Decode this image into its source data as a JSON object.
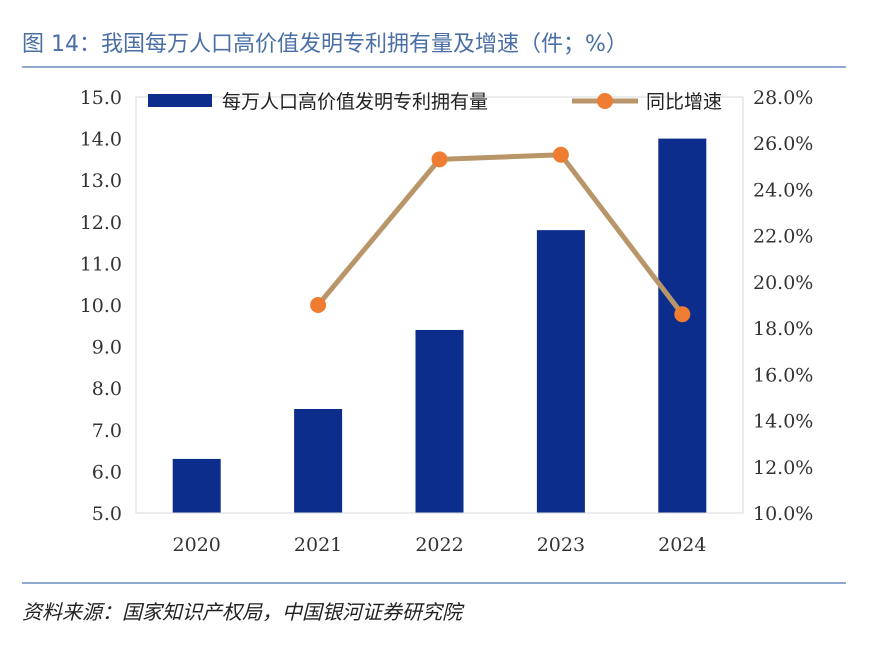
{
  "title": "图 14：我国每万人口高价值发明专利拥有量及增速（件；%）",
  "source": "资料来源：国家知识产权局，中国银河证券研究院",
  "colors": {
    "bar": "#0d2d8c",
    "line": "#b8966a",
    "marker": "#ee7d31",
    "accent": "#4a6fa5"
  },
  "chart_data": {
    "type": "bar",
    "categories": [
      "2020",
      "2021",
      "2022",
      "2023",
      "2024"
    ],
    "series": [
      {
        "name": "每万人口高价值发明专利拥有量",
        "type": "bar",
        "axis": "left",
        "values": [
          6.3,
          7.5,
          9.4,
          11.8,
          14.0
        ]
      },
      {
        "name": "同比增速",
        "type": "line",
        "axis": "right",
        "values": [
          null,
          19.0,
          25.3,
          25.5,
          18.6
        ]
      }
    ],
    "ylim": [
      5.0,
      15.0
    ],
    "y_ticks": [
      "15.0",
      "14.0",
      "13.0",
      "12.0",
      "11.0",
      "10.0",
      "9.0",
      "8.0",
      "7.0",
      "6.0",
      "5.0"
    ],
    "y2lim": [
      10.0,
      28.0
    ],
    "y2_ticks": [
      "28.0%",
      "26.0%",
      "24.0%",
      "22.0%",
      "20.0%",
      "18.0%",
      "16.0%",
      "14.0%",
      "12.0%",
      "10.0%"
    ],
    "legend": [
      "每万人口高价值发明专利拥有量",
      "同比增速"
    ]
  }
}
